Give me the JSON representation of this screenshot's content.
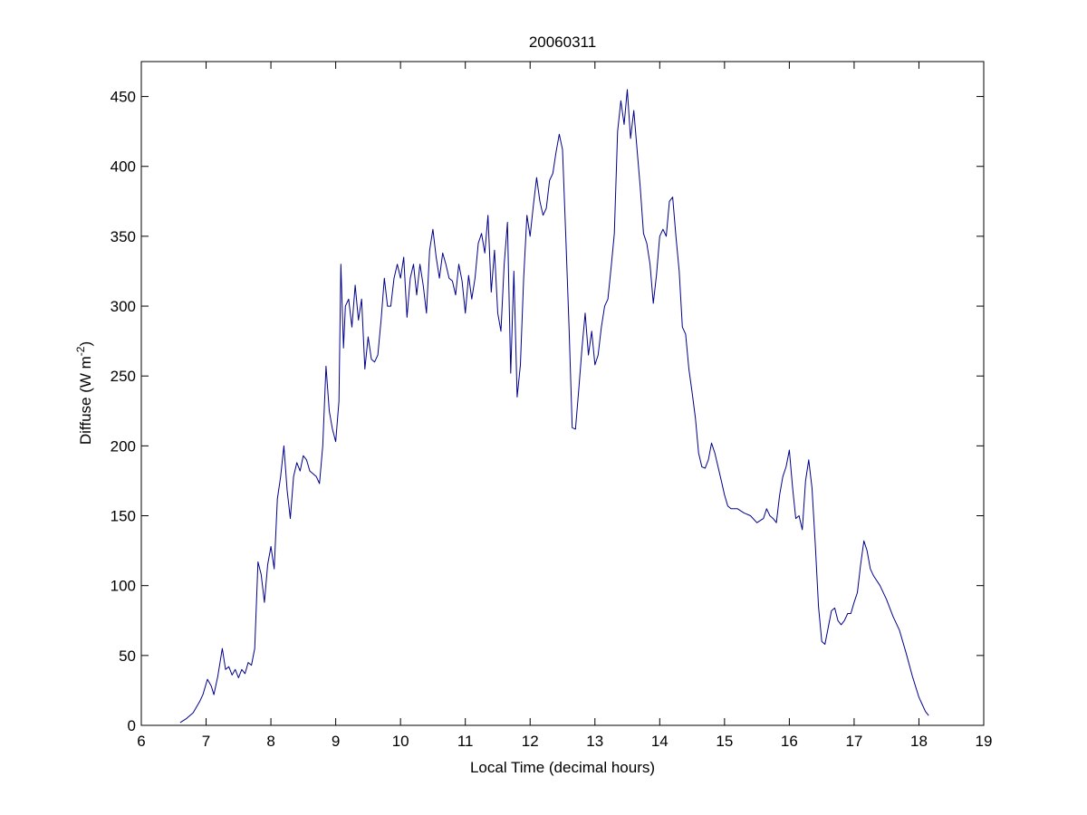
{
  "chart_data": {
    "type": "line",
    "title": "20060311",
    "xlabel": "Local Time (decimal hours)",
    "ylabel": "Diffuse (W m",
    "ylabel_sup": "-2",
    "ylabel_suffix": ")",
    "xlim": [
      6,
      19
    ],
    "ylim": [
      0,
      475
    ],
    "x_ticks": [
      6,
      7,
      8,
      9,
      10,
      11,
      12,
      13,
      14,
      15,
      16,
      17,
      18,
      19
    ],
    "y_ticks": [
      0,
      50,
      100,
      150,
      200,
      250,
      300,
      350,
      400,
      450
    ],
    "grid": false,
    "series": [
      {
        "color": "#00008B",
        "points": [
          [
            6.6,
            2
          ],
          [
            6.7,
            5
          ],
          [
            6.8,
            9
          ],
          [
            6.9,
            17
          ],
          [
            6.95,
            22
          ],
          [
            7.02,
            33
          ],
          [
            7.08,
            28
          ],
          [
            7.12,
            22
          ],
          [
            7.18,
            35
          ],
          [
            7.25,
            55
          ],
          [
            7.3,
            40
          ],
          [
            7.35,
            42
          ],
          [
            7.4,
            36
          ],
          [
            7.45,
            40
          ],
          [
            7.5,
            34
          ],
          [
            7.55,
            40
          ],
          [
            7.6,
            37
          ],
          [
            7.65,
            45
          ],
          [
            7.7,
            43
          ],
          [
            7.75,
            55
          ],
          [
            7.8,
            117
          ],
          [
            7.85,
            108
          ],
          [
            7.9,
            88
          ],
          [
            7.95,
            115
          ],
          [
            8.0,
            128
          ],
          [
            8.05,
            112
          ],
          [
            8.1,
            162
          ],
          [
            8.15,
            178
          ],
          [
            8.2,
            200
          ],
          [
            8.25,
            168
          ],
          [
            8.3,
            148
          ],
          [
            8.35,
            178
          ],
          [
            8.4,
            188
          ],
          [
            8.45,
            182
          ],
          [
            8.5,
            193
          ],
          [
            8.55,
            190
          ],
          [
            8.6,
            182
          ],
          [
            8.7,
            178
          ],
          [
            8.75,
            173
          ],
          [
            8.8,
            200
          ],
          [
            8.85,
            257
          ],
          [
            8.9,
            225
          ],
          [
            8.95,
            212
          ],
          [
            9.0,
            203
          ],
          [
            9.05,
            232
          ],
          [
            9.08,
            330
          ],
          [
            9.12,
            270
          ],
          [
            9.15,
            300
          ],
          [
            9.2,
            305
          ],
          [
            9.25,
            285
          ],
          [
            9.3,
            315
          ],
          [
            9.35,
            290
          ],
          [
            9.4,
            305
          ],
          [
            9.45,
            255
          ],
          [
            9.5,
            278
          ],
          [
            9.55,
            262
          ],
          [
            9.6,
            260
          ],
          [
            9.65,
            265
          ],
          [
            9.7,
            290
          ],
          [
            9.75,
            320
          ],
          [
            9.8,
            300
          ],
          [
            9.85,
            300
          ],
          [
            9.9,
            320
          ],
          [
            9.95,
            330
          ],
          [
            10.0,
            320
          ],
          [
            10.05,
            335
          ],
          [
            10.1,
            292
          ],
          [
            10.15,
            320
          ],
          [
            10.2,
            330
          ],
          [
            10.25,
            308
          ],
          [
            10.3,
            330
          ],
          [
            10.35,
            315
          ],
          [
            10.4,
            295
          ],
          [
            10.45,
            340
          ],
          [
            10.5,
            355
          ],
          [
            10.55,
            335
          ],
          [
            10.6,
            320
          ],
          [
            10.65,
            338
          ],
          [
            10.7,
            330
          ],
          [
            10.75,
            320
          ],
          [
            10.8,
            318
          ],
          [
            10.85,
            308
          ],
          [
            10.9,
            330
          ],
          [
            10.95,
            318
          ],
          [
            11.0,
            295
          ],
          [
            11.05,
            322
          ],
          [
            11.1,
            305
          ],
          [
            11.15,
            320
          ],
          [
            11.2,
            345
          ],
          [
            11.25,
            352
          ],
          [
            11.3,
            338
          ],
          [
            11.35,
            365
          ],
          [
            11.4,
            310
          ],
          [
            11.45,
            340
          ],
          [
            11.5,
            295
          ],
          [
            11.55,
            282
          ],
          [
            11.6,
            330
          ],
          [
            11.65,
            360
          ],
          [
            11.7,
            252
          ],
          [
            11.75,
            325
          ],
          [
            11.8,
            235
          ],
          [
            11.85,
            258
          ],
          [
            11.9,
            320
          ],
          [
            11.95,
            365
          ],
          [
            12.0,
            350
          ],
          [
            12.05,
            372
          ],
          [
            12.1,
            392
          ],
          [
            12.15,
            375
          ],
          [
            12.2,
            365
          ],
          [
            12.25,
            370
          ],
          [
            12.3,
            390
          ],
          [
            12.35,
            395
          ],
          [
            12.4,
            410
          ],
          [
            12.45,
            423
          ],
          [
            12.5,
            412
          ],
          [
            12.55,
            350
          ],
          [
            12.6,
            285
          ],
          [
            12.65,
            213
          ],
          [
            12.7,
            212
          ],
          [
            12.75,
            240
          ],
          [
            12.8,
            270
          ],
          [
            12.85,
            295
          ],
          [
            12.9,
            265
          ],
          [
            12.95,
            282
          ],
          [
            13.0,
            258
          ],
          [
            13.05,
            265
          ],
          [
            13.1,
            285
          ],
          [
            13.15,
            300
          ],
          [
            13.2,
            305
          ],
          [
            13.25,
            328
          ],
          [
            13.3,
            352
          ],
          [
            13.35,
            425
          ],
          [
            13.4,
            447
          ],
          [
            13.45,
            430
          ],
          [
            13.5,
            455
          ],
          [
            13.55,
            420
          ],
          [
            13.6,
            440
          ],
          [
            13.65,
            412
          ],
          [
            13.7,
            385
          ],
          [
            13.75,
            352
          ],
          [
            13.8,
            345
          ],
          [
            13.85,
            330
          ],
          [
            13.9,
            302
          ],
          [
            13.95,
            322
          ],
          [
            14.0,
            350
          ],
          [
            14.05,
            355
          ],
          [
            14.1,
            350
          ],
          [
            14.15,
            375
          ],
          [
            14.2,
            378
          ],
          [
            14.25,
            350
          ],
          [
            14.3,
            325
          ],
          [
            14.35,
            285
          ],
          [
            14.4,
            280
          ],
          [
            14.45,
            255
          ],
          [
            14.5,
            238
          ],
          [
            14.55,
            220
          ],
          [
            14.6,
            195
          ],
          [
            14.65,
            185
          ],
          [
            14.7,
            184
          ],
          [
            14.75,
            190
          ],
          [
            14.8,
            202
          ],
          [
            14.85,
            195
          ],
          [
            14.9,
            185
          ],
          [
            14.95,
            175
          ],
          [
            15.0,
            165
          ],
          [
            15.05,
            157
          ],
          [
            15.1,
            155
          ],
          [
            15.2,
            155
          ],
          [
            15.3,
            152
          ],
          [
            15.4,
            150
          ],
          [
            15.5,
            145
          ],
          [
            15.6,
            148
          ],
          [
            15.65,
            155
          ],
          [
            15.7,
            150
          ],
          [
            15.75,
            148
          ],
          [
            15.8,
            145
          ],
          [
            15.85,
            165
          ],
          [
            15.9,
            178
          ],
          [
            15.95,
            185
          ],
          [
            16.0,
            197
          ],
          [
            16.05,
            170
          ],
          [
            16.1,
            148
          ],
          [
            16.15,
            150
          ],
          [
            16.2,
            140
          ],
          [
            16.25,
            175
          ],
          [
            16.3,
            190
          ],
          [
            16.35,
            170
          ],
          [
            16.4,
            130
          ],
          [
            16.45,
            85
          ],
          [
            16.5,
            60
          ],
          [
            16.55,
            58
          ],
          [
            16.6,
            70
          ],
          [
            16.65,
            82
          ],
          [
            16.7,
            84
          ],
          [
            16.75,
            75
          ],
          [
            16.8,
            72
          ],
          [
            16.85,
            75
          ],
          [
            16.9,
            80
          ],
          [
            16.95,
            80
          ],
          [
            17.0,
            88
          ],
          [
            17.05,
            95
          ],
          [
            17.1,
            115
          ],
          [
            17.15,
            132
          ],
          [
            17.2,
            125
          ],
          [
            17.25,
            112
          ],
          [
            17.3,
            107
          ],
          [
            17.4,
            100
          ],
          [
            17.5,
            90
          ],
          [
            17.6,
            78
          ],
          [
            17.7,
            68
          ],
          [
            17.8,
            52
          ],
          [
            17.9,
            35
          ],
          [
            18.0,
            20
          ],
          [
            18.1,
            10
          ],
          [
            18.15,
            7
          ]
        ]
      }
    ]
  }
}
